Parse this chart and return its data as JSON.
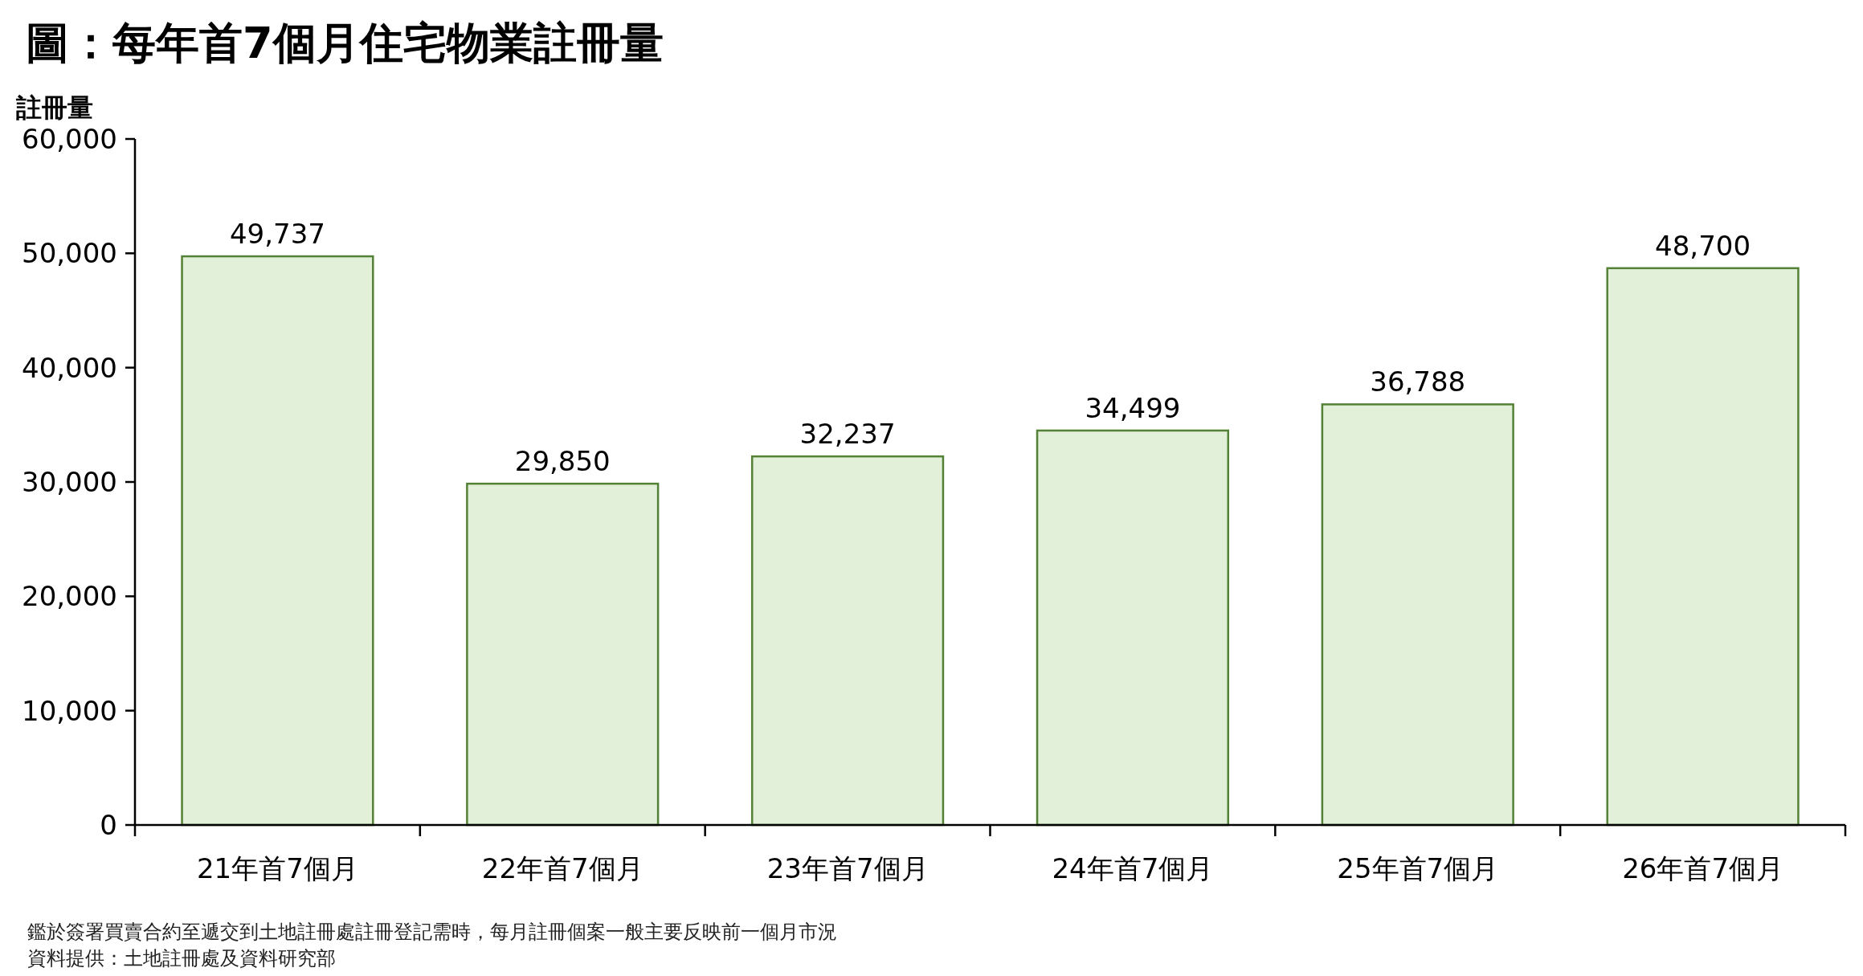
{
  "chart_data": {
    "type": "bar",
    "title": "圖：每年首7個月住宅物業註冊量",
    "ylabel": "註冊量",
    "categories": [
      "21年首7個月",
      "22年首7個月",
      "23年首7個月",
      "24年首7個月",
      "25年首7個月",
      "26年首7個月"
    ],
    "values": [
      49737,
      29850,
      32237,
      34499,
      36788,
      48700
    ],
    "color": "#e2efd9",
    "ylim": [
      0,
      60000
    ],
    "yticks": [
      {
        "value": 0,
        "label": "0"
      },
      {
        "value": 10000,
        "label": "10,000"
      },
      {
        "value": 20000,
        "label": "20,000"
      },
      {
        "value": 30000,
        "label": "30,000"
      },
      {
        "value": 40000,
        "label": "40,000"
      },
      {
        "value": 50000,
        "label": "50,000"
      },
      {
        "value": 60000,
        "label": "60,000"
      }
    ],
    "value_labels": [
      "49,737",
      "29,850",
      "32,237",
      "34,499",
      "36,788",
      "48,700"
    ],
    "annotations": [
      "鑑於簽署買賣合約至遞交到土地註冊處註冊登記需時，每月註冊個案一般主要反映前一個月市況",
      "資料提供：土地註冊處及資料研究部"
    ]
  }
}
